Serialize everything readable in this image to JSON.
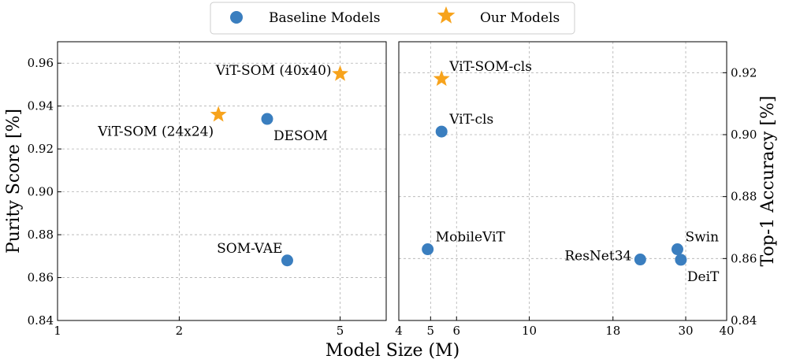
{
  "colors": {
    "baseline": "#3a7ebf",
    "ours": "#f7a31c"
  },
  "legend": {
    "baseline_label": "Baseline Models",
    "ours_label": "Our Models"
  },
  "shared_xlabel": "Model Size (M)",
  "chart_data": [
    {
      "type": "scatter",
      "panel": "left",
      "xscale": "log",
      "xlim": [
        1,
        6.5
      ],
      "ylim": [
        0.84,
        0.97
      ],
      "xticks": [
        1,
        2,
        5
      ],
      "xtick_labels": [
        "1",
        "2",
        "5"
      ],
      "yticks": [
        0.84,
        0.86,
        0.88,
        0.9,
        0.92,
        0.94,
        0.96
      ],
      "ytick_labels": [
        "0.84",
        "0.86",
        "0.88",
        "0.90",
        "0.92",
        "0.94",
        "0.96"
      ],
      "ylabel": "Purity Score [%]",
      "grid": true,
      "series": [
        {
          "name": "Baseline Models",
          "marker": "circle",
          "points": [
            {
              "label": "DESOM",
              "x": 3.3,
              "y": 0.934,
              "label_pos": "below-right"
            },
            {
              "label": "SOM-VAE",
              "x": 3.7,
              "y": 0.868,
              "label_pos": "above-left"
            }
          ]
        },
        {
          "name": "Our Models",
          "marker": "star",
          "points": [
            {
              "label": "ViT-SOM (24x24)",
              "x": 2.5,
              "y": 0.936,
              "label_pos": "below-left"
            },
            {
              "label": "ViT-SOM (40x40)",
              "x": 5.0,
              "y": 0.955,
              "label_pos": "left"
            }
          ]
        }
      ]
    },
    {
      "type": "scatter",
      "panel": "right",
      "xscale": "log",
      "xlim": [
        4,
        40
      ],
      "ylim": [
        0.84,
        0.93
      ],
      "xticks": [
        4,
        5,
        6,
        10,
        18,
        30,
        40
      ],
      "xtick_labels": [
        "4",
        "5",
        "6",
        "10",
        "18",
        "30",
        "40"
      ],
      "yticks": [
        0.84,
        0.86,
        0.88,
        0.9,
        0.92
      ],
      "ytick_labels": [
        "0.84",
        "0.86",
        "0.88",
        "0.90",
        "0.92"
      ],
      "ylabel": "Top-1 Accuracy [%]",
      "yaxis_side": "right",
      "grid": true,
      "series": [
        {
          "name": "Baseline Models",
          "marker": "circle",
          "points": [
            {
              "label": "ViT-cls",
              "x": 5.4,
              "y": 0.901,
              "label_pos": "above-right"
            },
            {
              "label": "MobileViT",
              "x": 4.9,
              "y": 0.863,
              "label_pos": "above-right"
            },
            {
              "label": "ResNet34",
              "x": 21.8,
              "y": 0.8597,
              "label_pos": "left"
            },
            {
              "label": "Swin",
              "x": 28.3,
              "y": 0.863,
              "label_pos": "above-right"
            },
            {
              "label": "DeiT",
              "x": 29.0,
              "y": 0.8596,
              "label_pos": "below-right"
            }
          ]
        },
        {
          "name": "Our Models",
          "marker": "star",
          "points": [
            {
              "label": "ViT-SOM-cls",
              "x": 5.4,
              "y": 0.918,
              "label_pos": "above-right"
            }
          ]
        }
      ]
    }
  ]
}
